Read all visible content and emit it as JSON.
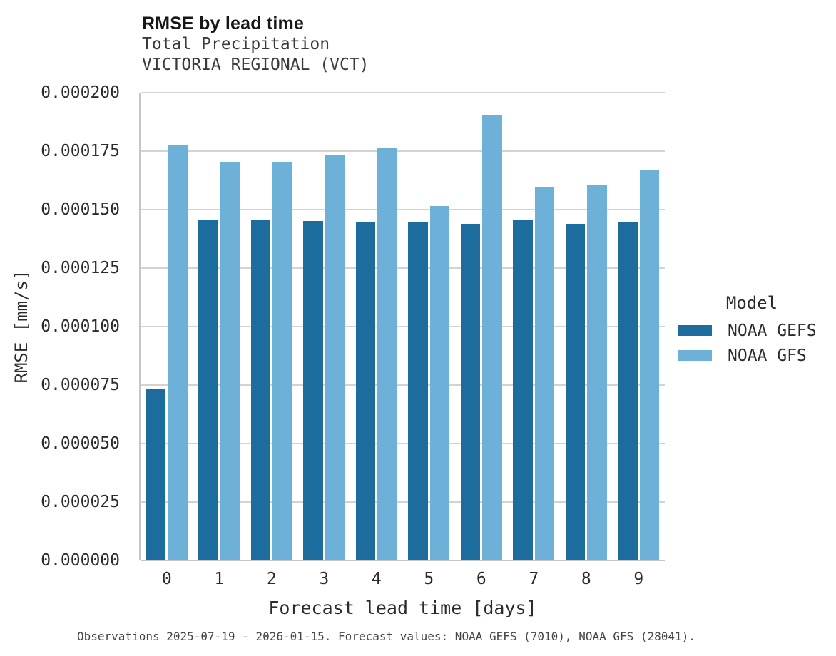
{
  "header": {
    "title": "RMSE by lead time",
    "subtitle_line1": "Total Precipitation",
    "subtitle_line2": "VICTORIA REGIONAL (VCT)"
  },
  "axes": {
    "xlabel": "Forecast lead time [days]",
    "ylabel": "RMSE [mm/s]"
  },
  "legend": {
    "title": "Model",
    "items": [
      {
        "label": "NOAA GEFS",
        "color": "#1c6d9d"
      },
      {
        "label": "NOAA GFS",
        "color": "#6db1d9"
      }
    ]
  },
  "footer": {
    "text": "Observations 2025-07-19 - 2026-01-15. Forecast values: NOAA GEFS (7010), NOAA GFS (28041)."
  },
  "colors": {
    "gefs_dark_blue": "#1c6d9d",
    "gfs_light_blue": "#6db1d9",
    "gridline": "#d3d3d3",
    "axis_line": "#c6c6c6"
  },
  "chart_data": {
    "type": "bar",
    "title": "RMSE by lead time",
    "subtitle": [
      "Total Precipitation",
      "VICTORIA REGIONAL (VCT)"
    ],
    "xlabel": "Forecast lead time [days]",
    "ylabel": "RMSE [mm/s]",
    "categories": [
      "0",
      "1",
      "2",
      "3",
      "4",
      "5",
      "6",
      "7",
      "8",
      "9"
    ],
    "series": [
      {
        "name": "NOAA GEFS",
        "color": "#1c6d9d",
        "values": [
          7.35e-05,
          0.0001456,
          0.0001458,
          0.000145,
          0.0001445,
          0.0001445,
          0.000144,
          0.0001456,
          0.000144,
          0.0001447
        ]
      },
      {
        "name": "NOAA GFS",
        "color": "#6db1d9",
        "values": [
          0.0001777,
          0.0001704,
          0.0001704,
          0.0001731,
          0.0001763,
          0.0001514,
          0.0001906,
          0.0001597,
          0.0001606,
          0.0001672
        ]
      }
    ],
    "ylim": [
      0,
      0.0002
    ],
    "yticks": [
      0.0,
      2.5e-05,
      5e-05,
      7.5e-05,
      0.0001,
      0.000125,
      0.00015,
      0.000175,
      0.0002
    ],
    "ytick_labels": [
      "0.000000",
      "0.000025",
      "0.000050",
      "0.000075",
      "0.000100",
      "0.000125",
      "0.000150",
      "0.000175",
      "0.000200"
    ],
    "grid": "horizontal",
    "legend_title": "Model",
    "legend_position": "center-right",
    "footnote": "Observations 2025-07-19 - 2026-01-15. Forecast values: NOAA GEFS (7010), NOAA GFS (28041)."
  }
}
